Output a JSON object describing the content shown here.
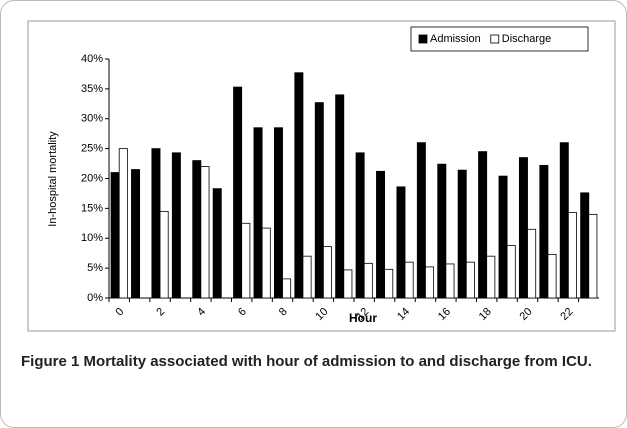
{
  "chart_data": {
    "type": "bar",
    "categories": [
      0,
      null,
      2,
      null,
      4,
      null,
      6,
      null,
      8,
      null,
      10,
      null,
      12,
      null,
      14,
      null,
      16,
      null,
      18,
      null,
      20,
      null,
      22,
      null
    ],
    "series": [
      {
        "name": "Admission",
        "color": "#000000",
        "values": [
          21,
          21.5,
          25,
          24.3,
          23,
          18.3,
          35.3,
          28.5,
          28.5,
          37.7,
          32.7,
          34,
          24.3,
          21.2,
          18.6,
          26,
          22.4,
          21.4,
          24.5,
          20.4,
          23.5,
          22.2,
          26,
          17.6
        ]
      },
      {
        "name": "Discharge",
        "color": "#ffffff",
        "values": [
          25,
          null,
          14.5,
          null,
          22,
          null,
          12.5,
          11.7,
          3.2,
          7,
          8.6,
          4.7,
          5.8,
          4.8,
          6,
          5.2,
          5.7,
          6,
          7,
          8.8,
          11.5,
          7.3,
          14.3,
          14
        ]
      }
    ],
    "ylim": [
      0,
      40
    ],
    "yticks": [
      {
        "value": 0,
        "label": "0%"
      },
      {
        "value": 5,
        "label": "5%"
      },
      {
        "value": 10,
        "label": "10%"
      },
      {
        "value": 15,
        "label": "15%"
      },
      {
        "value": 20,
        "label": "20%"
      },
      {
        "value": 25,
        "label": "25%"
      },
      {
        "value": 30,
        "label": "30%"
      },
      {
        "value": 35,
        "label": "35%"
      },
      {
        "value": 40,
        "label": "40%"
      }
    ],
    "xlabel": "Hour",
    "ylabel": "In-hospital mortality",
    "legend": "upper right"
  },
  "caption": {
    "label": "Figure 1",
    "text": "Mortality associated with hour of admission to and discharge from ICU."
  }
}
